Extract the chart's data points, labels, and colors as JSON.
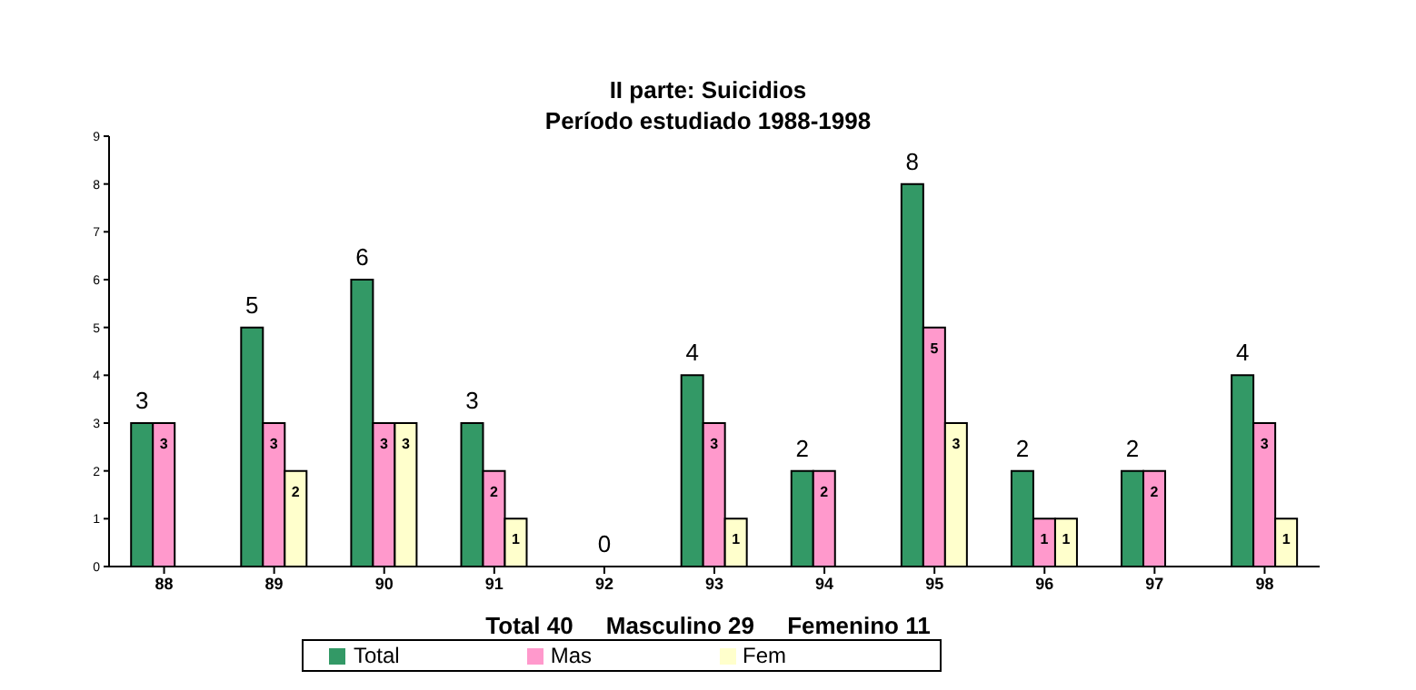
{
  "chart_data": {
    "type": "bar",
    "title": "II parte:  Suicidios\nPeríodo estudiado 1988-1998",
    "categories": [
      "88",
      "89",
      "90",
      "91",
      "92",
      "93",
      "94",
      "95",
      "96",
      "97",
      "98"
    ],
    "series": [
      {
        "name": "Total",
        "color": "#339966",
        "values": [
          3,
          5,
          6,
          3,
          0,
          4,
          2,
          8,
          2,
          2,
          4
        ]
      },
      {
        "name": "Mas",
        "color": "#ff99cc",
        "values": [
          3,
          3,
          3,
          2,
          null,
          3,
          2,
          5,
          1,
          2,
          3
        ]
      },
      {
        "name": "Fem",
        "color": "#ffffcc",
        "values": [
          null,
          2,
          3,
          1,
          null,
          1,
          null,
          3,
          1,
          null,
          1
        ]
      }
    ],
    "ylim": [
      0,
      9
    ],
    "yticks": [
      0,
      1,
      2,
      3,
      4,
      5,
      6,
      7,
      8,
      9
    ],
    "grid": false,
    "legend": "bottom",
    "data_labels": true,
    "annotations": [
      "Total 40     Masculino 29     Femenino 11"
    ]
  }
}
